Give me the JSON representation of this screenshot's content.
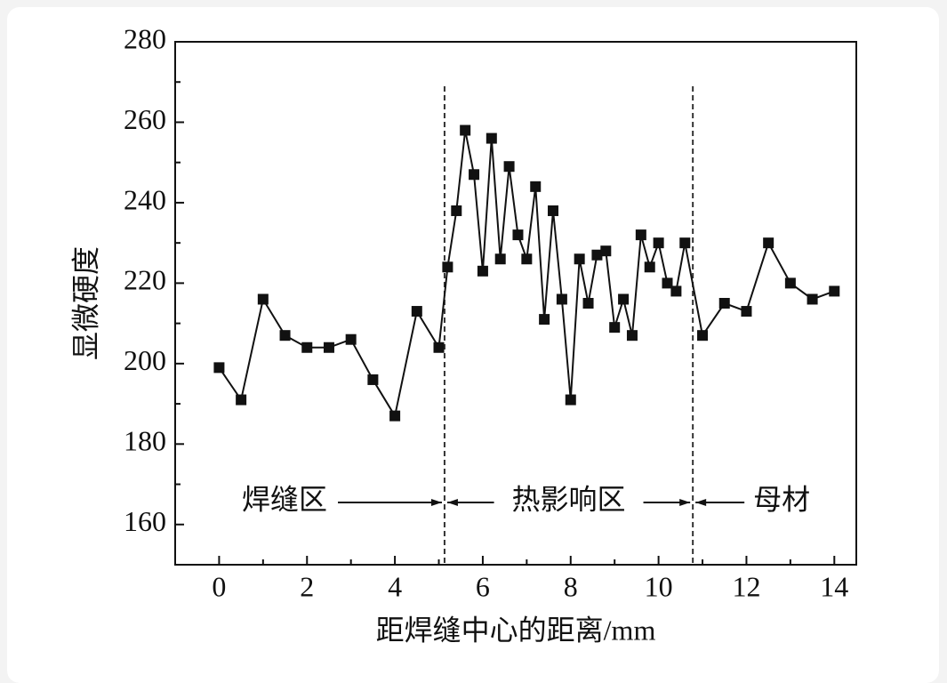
{
  "chart_data": {
    "type": "line",
    "x_label": "距焊缝中心的距离/mm",
    "y_label": "显微硬度",
    "x": [
      0,
      0.5,
      1,
      1.5,
      2,
      2.5,
      3,
      3.5,
      4,
      4.5,
      5,
      5.2,
      5.4,
      5.6,
      5.8,
      6.0,
      6.2,
      6.4,
      6.6,
      6.8,
      7.0,
      7.2,
      7.4,
      7.6,
      7.8,
      8.0,
      8.2,
      8.4,
      8.6,
      8.8,
      9.0,
      9.2,
      9.4,
      9.6,
      9.8,
      10.0,
      10.2,
      10.4,
      10.6,
      11,
      11.5,
      12,
      12.5,
      13,
      13.5,
      14
    ],
    "values": [
      199,
      191,
      216,
      207,
      204,
      204,
      206,
      196,
      187,
      213,
      204,
      224,
      238,
      258,
      247,
      223,
      256,
      226,
      249,
      232,
      226,
      244,
      211,
      238,
      216,
      191,
      226,
      215,
      227,
      228,
      209,
      216,
      207,
      232,
      224,
      230,
      220,
      218,
      230,
      207,
      215,
      213,
      230,
      220,
      216,
      218
    ],
    "color": "#111111",
    "xlim": [
      -1,
      14.5
    ],
    "ylim": [
      150,
      280
    ],
    "xticks": [
      0,
      2,
      4,
      6,
      8,
      10,
      12,
      14
    ],
    "yticks": [
      160,
      180,
      200,
      220,
      240,
      260,
      280
    ],
    "boundaries": [
      5.13,
      10.78
    ],
    "regions": [
      "焊缝区",
      "热影响区",
      "母材"
    ]
  }
}
